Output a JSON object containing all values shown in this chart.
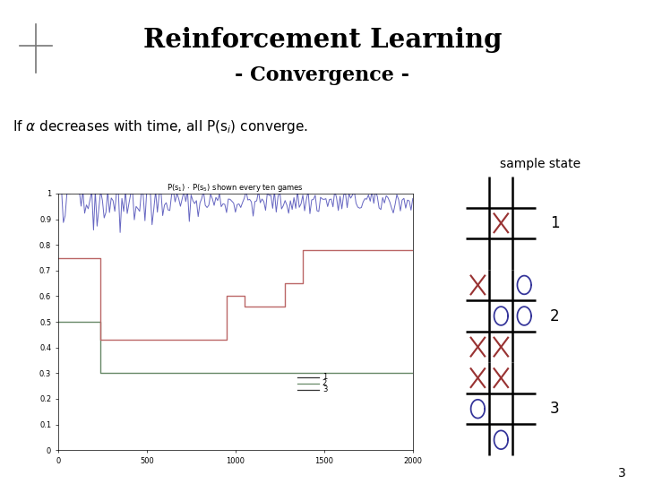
{
  "title1": "Reinforcement Learning",
  "title2": "- Convergence -",
  "body_text": "If α decreases with time, all P(s",
  "body_sub": "i",
  "body_end": ") converge.",
  "sample_state_label": "sample state",
  "bg_color": "#ffffff",
  "crosshair_color": "#777777",
  "graph_title": "P(s₁) … P(s₅) shown every ten games",
  "line1_color": "#5555bb",
  "line2_color": "#668866",
  "line3_color": "#bb6666",
  "corner_label": "3",
  "board1_cells": [
    [
      " ",
      " ",
      " "
    ],
    [
      " ",
      "X",
      " "
    ],
    [
      " ",
      " ",
      " "
    ]
  ],
  "board2_cells": [
    [
      "X",
      " ",
      "O"
    ],
    [
      " ",
      "O",
      "O"
    ],
    [
      "X",
      "X",
      " "
    ]
  ],
  "board3_cells": [
    [
      "X",
      "X",
      " "
    ],
    [
      "O",
      " ",
      " "
    ],
    [
      " ",
      "O",
      " "
    ]
  ]
}
